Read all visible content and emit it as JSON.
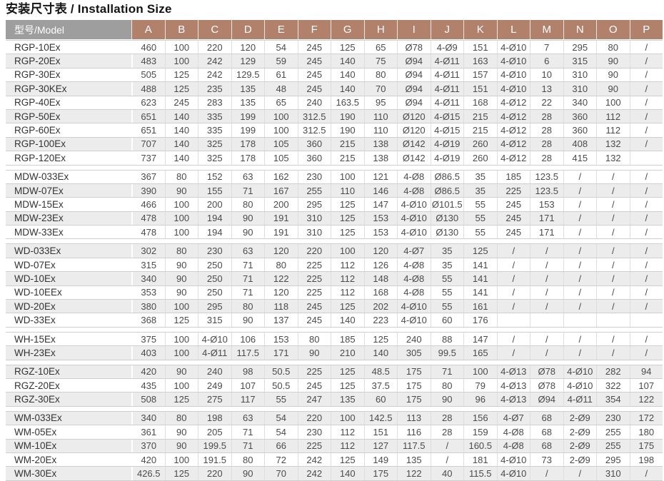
{
  "title": "安装尺寸表 / Installation Size",
  "colors": {
    "header_columns_bg": "#b2816c",
    "header_model_bg": "#9e9e9e",
    "stripe_bg": "#ececec"
  },
  "table": {
    "model_header": "型号/Model",
    "columns": [
      "A",
      "B",
      "C",
      "D",
      "E",
      "F",
      "G",
      "H",
      "I",
      "J",
      "K",
      "L",
      "M",
      "N",
      "O",
      "P"
    ],
    "sections": [
      {
        "name": "RGP",
        "rows": [
          {
            "model": "RGP-10Ex",
            "values": [
              "460",
              "100",
              "220",
              "120",
              "54",
              "245",
              "125",
              "65",
              "Ø78",
              "4-Ø9",
              "151",
              "4-Ø10",
              "7",
              "295",
              "80",
              "/"
            ]
          },
          {
            "model": "RGP-20Ex",
            "values": [
              "483",
              "100",
              "242",
              "129",
              "59",
              "245",
              "140",
              "75",
              "Ø94",
              "4-Ø11",
              "163",
              "4-Ø10",
              "6",
              "315",
              "90",
              "/"
            ]
          },
          {
            "model": "RGP-30Ex",
            "values": [
              "505",
              "125",
              "242",
              "129.5",
              "61",
              "245",
              "140",
              "80",
              "Ø94",
              "4-Ø11",
              "157",
              "4-Ø10",
              "10",
              "310",
              "90",
              "/"
            ]
          },
          {
            "model": "RGP-30KEx",
            "values": [
              "488",
              "125",
              "235",
              "135",
              "48",
              "245",
              "140",
              "70",
              "Ø94",
              "4-Ø11",
              "151",
              "4-Ø10",
              "13",
              "310",
              "90",
              "/"
            ]
          },
          {
            "model": "RGP-40Ex",
            "values": [
              "623",
              "245",
              "283",
              "135",
              "65",
              "240",
              "163.5",
              "95",
              "Ø94",
              "4-Ø11",
              "168",
              "4-Ø12",
              "22",
              "340",
              "100",
              "/"
            ]
          },
          {
            "model": "RGP-50Ex",
            "values": [
              "651",
              "140",
              "335",
              "199",
              "100",
              "312.5",
              "190",
              "110",
              "Ø120",
              "4-Ø15",
              "215",
              "4-Ø12",
              "28",
              "360",
              "112",
              "/"
            ]
          },
          {
            "model": "RGP-60Ex",
            "values": [
              "651",
              "140",
              "335",
              "199",
              "100",
              "312.5",
              "190",
              "110",
              "Ø120",
              "4-Ø15",
              "215",
              "4-Ø12",
              "28",
              "360",
              "112",
              "/"
            ]
          },
          {
            "model": "RGP-100Ex",
            "values": [
              "707",
              "140",
              "325",
              "178",
              "105",
              "360",
              "215",
              "138",
              "Ø142",
              "4-Ø19",
              "260",
              "4-Ø12",
              "28",
              "408",
              "132",
              "/"
            ]
          },
          {
            "model": "RGP-120Ex",
            "values": [
              "737",
              "140",
              "325",
              "178",
              "105",
              "360",
              "215",
              "138",
              "Ø142",
              "4-Ø19",
              "260",
              "4-Ø12",
              "28",
              "415",
              "132",
              ""
            ]
          }
        ]
      },
      {
        "name": "MDW",
        "rows": [
          {
            "model": "MDW-033Ex",
            "values": [
              "367",
              "80",
              "152",
              "63",
              "162",
              "230",
              "100",
              "121",
              "4-Ø8",
              "Ø86.5",
              "35",
              "185",
              "123.5",
              "/",
              "/",
              "/"
            ]
          },
          {
            "model": "MDW-07Ex",
            "values": [
              "390",
              "90",
              "155",
              "71",
              "167",
              "255",
              "110",
              "146",
              "4-Ø8",
              "Ø86.5",
              "35",
              "225",
              "123.5",
              "/",
              "/",
              "/"
            ]
          },
          {
            "model": "MDW-15Ex",
            "values": [
              "466",
              "100",
              "200",
              "80",
              "200",
              "295",
              "125",
              "147",
              "4-Ø10",
              "Ø101.5",
              "55",
              "245",
              "153",
              "/",
              "/",
              "/"
            ]
          },
          {
            "model": "MDW-23Ex",
            "values": [
              "478",
              "100",
              "194",
              "90",
              "191",
              "310",
              "125",
              "153",
              "4-Ø10",
              "Ø130",
              "55",
              "245",
              "171",
              "/",
              "/",
              "/"
            ]
          },
          {
            "model": "MDW-33Ex",
            "values": [
              "478",
              "100",
              "194",
              "90",
              "191",
              "310",
              "125",
              "153",
              "4-Ø10",
              "Ø130",
              "55",
              "245",
              "171",
              "/",
              "/",
              "/"
            ]
          }
        ]
      },
      {
        "name": "WD",
        "rows": [
          {
            "model": "WD-033Ex",
            "values": [
              "302",
              "80",
              "230",
              "63",
              "120",
              "220",
              "100",
              "120",
              "4-Ø7",
              "35",
              "125",
              "/",
              "/",
              "/",
              "/",
              "/"
            ]
          },
          {
            "model": "WD-07Ex",
            "values": [
              "315",
              "90",
              "250",
              "71",
              "80",
              "225",
              "112",
              "126",
              "4-Ø8",
              "35",
              "141",
              "/",
              "/",
              "/",
              "/",
              "/"
            ]
          },
          {
            "model": "WD-10Ex",
            "values": [
              "340",
              "90",
              "250",
              "71",
              "122",
              "225",
              "112",
              "148",
              "4-Ø8",
              "55",
              "141",
              "/",
              "/",
              "/",
              "/",
              "/"
            ]
          },
          {
            "model": "WD-10EEx",
            "values": [
              "353",
              "90",
              "250",
              "71",
              "120",
              "225",
              "112",
              "168",
              "4-Ø8",
              "55",
              "141",
              "/",
              "/",
              "/",
              "/",
              "/"
            ]
          },
          {
            "model": "WD-20Ex",
            "values": [
              "380",
              "100",
              "295",
              "80",
              "118",
              "245",
              "125",
              "202",
              "4-Ø10",
              "55",
              "161",
              "/",
              "/",
              "/",
              "/",
              "/"
            ]
          },
          {
            "model": "WD-33Ex",
            "values": [
              "368",
              "125",
              "315",
              "90",
              "137",
              "245",
              "140",
              "223",
              "4-Ø10",
              "60",
              "176",
              "",
              "",
              "",
              "",
              ""
            ]
          }
        ]
      },
      {
        "name": "WH",
        "rows": [
          {
            "model": "WH-15Ex",
            "values": [
              "375",
              "100",
              "4-Ø10",
              "106",
              "153",
              "80",
              "185",
              "125",
              "240",
              "88",
              "147",
              "/",
              "/",
              "/",
              "/",
              "/"
            ]
          },
          {
            "model": "WH-23Ex",
            "values": [
              "403",
              "100",
              "4-Ø11",
              "117.5",
              "171",
              "90",
              "210",
              "140",
              "305",
              "99.5",
              "165",
              "/",
              "/",
              "/",
              "/",
              "/"
            ]
          }
        ]
      },
      {
        "name": "RGZ",
        "rows": [
          {
            "model": "RGZ-10Ex",
            "values": [
              "420",
              "90",
              "240",
              "98",
              "50.5",
              "225",
              "125",
              "48.5",
              "175",
              "71",
              "100",
              "4-Ø13",
              "Ø78",
              "4-Ø10",
              "282",
              "94"
            ]
          },
          {
            "model": "RGZ-20Ex",
            "values": [
              "435",
              "100",
              "249",
              "107",
              "50.5",
              "245",
              "125",
              "37.5",
              "175",
              "80",
              "79",
              "4-Ø13",
              "Ø78",
              "4-Ø10",
              "322",
              "107"
            ]
          },
          {
            "model": "RGZ-30Ex",
            "values": [
              "508",
              "125",
              "275",
              "117",
              "55",
              "247",
              "135",
              "60",
              "175",
              "90",
              "96",
              "4-Ø13",
              "Ø94",
              "4-Ø11",
              "354",
              "122"
            ]
          }
        ]
      },
      {
        "name": "WM",
        "rows": [
          {
            "model": "WM-033Ex",
            "values": [
              "340",
              "80",
              "198",
              "63",
              "54",
              "220",
              "100",
              "142.5",
              "113",
              "28",
              "156",
              "4-Ø7",
              "68",
              "2-Ø9",
              "230",
              "172"
            ]
          },
          {
            "model": "WM-05Ex",
            "values": [
              "361",
              "90",
              "205",
              "71",
              "54",
              "230",
              "112",
              "151",
              "116",
              "28",
              "159",
              "4-Ø8",
              "68",
              "2-Ø9",
              "255",
              "180"
            ]
          },
          {
            "model": "WM-10Ex",
            "values": [
              "370",
              "90",
              "199.5",
              "71",
              "66",
              "225",
              "112",
              "127",
              "117.5",
              "/",
              "160.5",
              "4-Ø8",
              "68",
              "2-Ø9",
              "255",
              "175"
            ]
          },
          {
            "model": "WM-20Ex",
            "values": [
              "420",
              "100",
              "191.5",
              "80",
              "72",
              "242",
              "125",
              "149",
              "135",
              "/",
              "181",
              "4-Ø10",
              "73",
              "2-Ø9",
              "295",
              "198"
            ]
          },
          {
            "model": "WM-30Ex",
            "values": [
              "426.5",
              "125",
              "220",
              "90",
              "70",
              "242",
              "140",
              "175",
              "122",
              "40",
              "115.5",
              "4-Ø10",
              "/",
              "/",
              "310",
              "/"
            ]
          }
        ]
      }
    ]
  }
}
